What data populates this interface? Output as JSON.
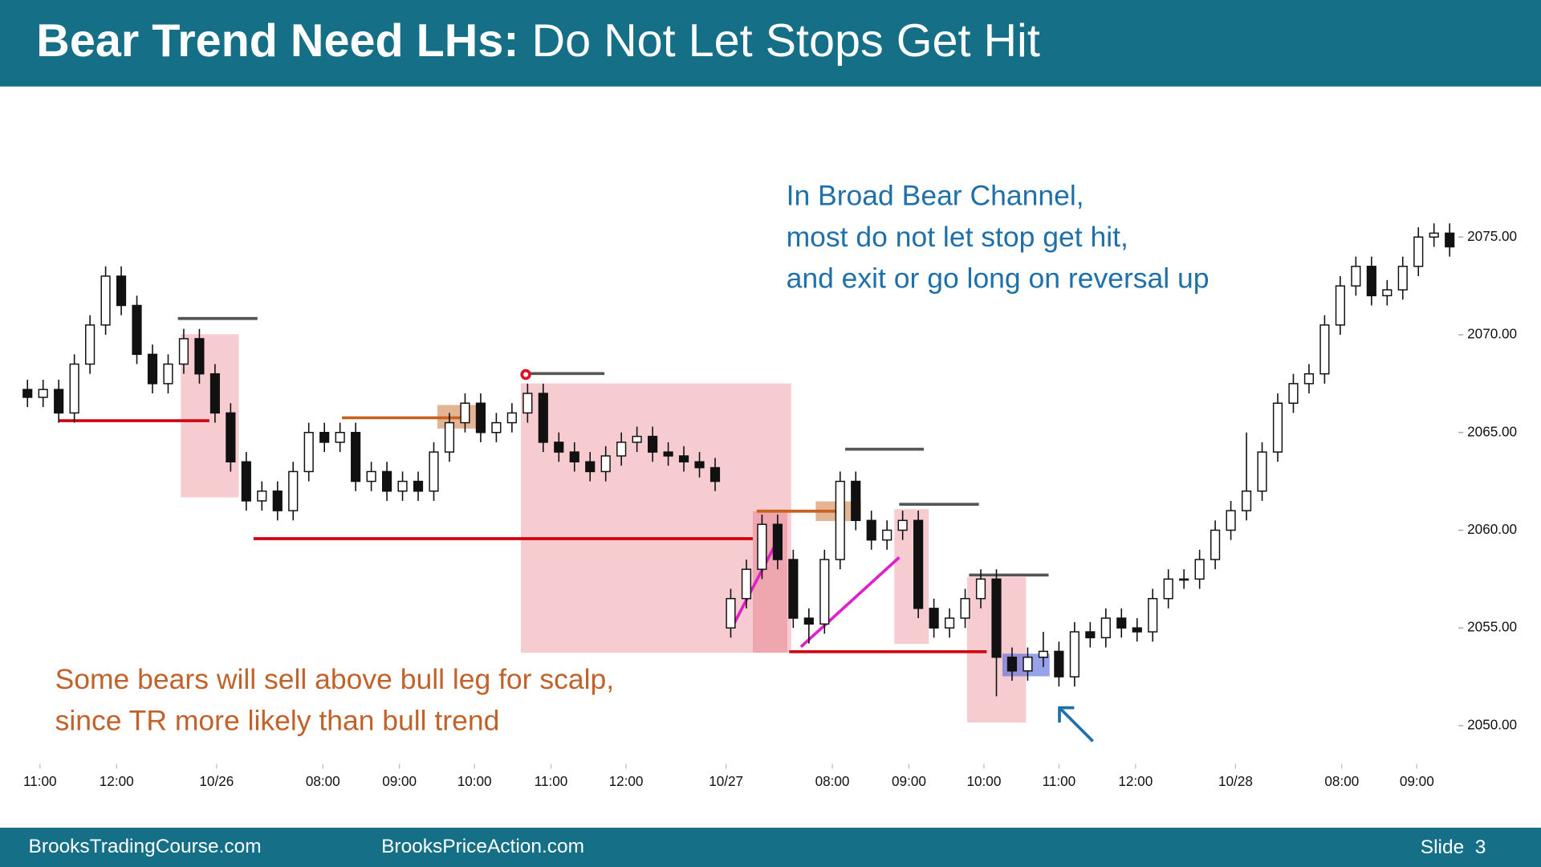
{
  "chart_data": {
    "type": "candlestick",
    "title": [
      "Bear Trend Need LHs:",
      "Do Not Let Stops Get Hit"
    ],
    "annotations": [
      [
        "In Broad Bear Channel,",
        "most do not let stop get hit,",
        "and exit or go long on reversal up"
      ],
      [
        "Some bears will sell above bull leg for scalp,",
        "since TR more likely than bull trend"
      ]
    ],
    "ylim": [
      2048.4,
      2082.1
    ],
    "yticks": [
      {
        "value": 2050,
        "label": "2050.00"
      },
      {
        "value": 2055,
        "label": "2055.00"
      },
      {
        "value": 2060,
        "label": "2060.00"
      },
      {
        "value": 2065,
        "label": "2065.00"
      },
      {
        "value": 2070,
        "label": "2070.00"
      },
      {
        "value": 2075,
        "label": "2075.00"
      }
    ],
    "xlim": [
      0,
      92
    ],
    "xticks": [
      {
        "value": 1.3,
        "label": "11:00"
      },
      {
        "value": 6.2,
        "label": "12:00"
      },
      {
        "value": 12.6,
        "label": "10/26"
      },
      {
        "value": 19.4,
        "label": "08:00"
      },
      {
        "value": 24.3,
        "label": "09:00"
      },
      {
        "value": 29.1,
        "label": "10:00"
      },
      {
        "value": 34.0,
        "label": "11:00"
      },
      {
        "value": 38.8,
        "label": "12:00"
      },
      {
        "value": 45.2,
        "label": "10/27"
      },
      {
        "value": 52.0,
        "label": "08:00"
      },
      {
        "value": 56.9,
        "label": "09:00"
      },
      {
        "value": 61.7,
        "label": "10:00"
      },
      {
        "value": 66.5,
        "label": "11:00"
      },
      {
        "value": 71.4,
        "label": "12:00"
      },
      {
        "value": 77.8,
        "label": "10/28"
      },
      {
        "value": 84.6,
        "label": "08:00"
      },
      {
        "value": 89.4,
        "label": "09:00"
      }
    ],
    "up_color": "#ffffff",
    "down_color": "#111111",
    "ohlc": [
      [
        2067.2,
        2067.7,
        2066.3,
        2066.8
      ],
      [
        2066.8,
        2067.7,
        2066.3,
        2067.2
      ],
      [
        2067.2,
        2067.7,
        2065.5,
        2066.0
      ],
      [
        2066.0,
        2069.0,
        2065.5,
        2068.5
      ],
      [
        2068.5,
        2071.0,
        2068.0,
        2070.5
      ],
      [
        2070.5,
        2073.5,
        2070.0,
        2073.0
      ],
      [
        2073.0,
        2073.5,
        2071.0,
        2071.5
      ],
      [
        2071.5,
        2072.0,
        2068.5,
        2069.0
      ],
      [
        2069.0,
        2069.5,
        2067.0,
        2067.5
      ],
      [
        2067.5,
        2069.0,
        2067.0,
        2068.5
      ],
      [
        2068.5,
        2070.3,
        2068.0,
        2069.8
      ],
      [
        2069.8,
        2070.3,
        2067.5,
        2068.0
      ],
      [
        2068.0,
        2068.5,
        2065.5,
        2066.0
      ],
      [
        2066.0,
        2066.5,
        2063.0,
        2063.5
      ],
      [
        2063.5,
        2064.0,
        2061.0,
        2061.5
      ],
      [
        2061.5,
        2062.5,
        2061.0,
        2062.0
      ],
      [
        2062.0,
        2062.5,
        2060.5,
        2061.0
      ],
      [
        2061.0,
        2063.5,
        2060.5,
        2063.0
      ],
      [
        2063.0,
        2065.5,
        2062.5,
        2065.0
      ],
      [
        2065.0,
        2065.5,
        2064.0,
        2064.5
      ],
      [
        2064.5,
        2065.5,
        2064.0,
        2065.0
      ],
      [
        2065.0,
        2065.5,
        2062.0,
        2062.5
      ],
      [
        2062.5,
        2063.5,
        2062.0,
        2063.0
      ],
      [
        2063.0,
        2063.5,
        2061.5,
        2062.0
      ],
      [
        2062.0,
        2063.0,
        2061.5,
        2062.5
      ],
      [
        2062.5,
        2063.0,
        2061.5,
        2062.0
      ],
      [
        2062.0,
        2064.5,
        2061.5,
        2064.0
      ],
      [
        2064.0,
        2066.0,
        2063.5,
        2065.5
      ],
      [
        2065.5,
        2067.0,
        2065.0,
        2066.5
      ],
      [
        2066.5,
        2067.0,
        2064.5,
        2065.0
      ],
      [
        2065.0,
        2066.0,
        2064.5,
        2065.5
      ],
      [
        2065.5,
        2066.5,
        2065.0,
        2066.0
      ],
      [
        2066.0,
        2067.5,
        2065.5,
        2067.0
      ],
      [
        2067.0,
        2067.5,
        2064.0,
        2064.5
      ],
      [
        2064.5,
        2065.0,
        2063.5,
        2064.0
      ],
      [
        2064.0,
        2064.5,
        2063.0,
        2063.5
      ],
      [
        2063.5,
        2064.0,
        2062.5,
        2063.0
      ],
      [
        2063.0,
        2064.3,
        2062.5,
        2063.8
      ],
      [
        2063.8,
        2065.0,
        2063.3,
        2064.5
      ],
      [
        2064.5,
        2065.3,
        2064.0,
        2064.8
      ],
      [
        2064.8,
        2065.3,
        2063.5,
        2064.0
      ],
      [
        2064.0,
        2064.5,
        2063.3,
        2063.8
      ],
      [
        2063.8,
        2064.3,
        2063.0,
        2063.5
      ],
      [
        2063.5,
        2064.0,
        2062.7,
        2063.2
      ],
      [
        2063.2,
        2063.7,
        2062.0,
        2062.5
      ],
      [
        2055.0,
        2057.0,
        2054.5,
        2056.5
      ],
      [
        2056.5,
        2058.5,
        2056.0,
        2058.0
      ],
      [
        2058.0,
        2060.8,
        2057.5,
        2060.3
      ],
      [
        2060.3,
        2060.8,
        2058.0,
        2058.5
      ],
      [
        2058.5,
        2059.0,
        2055.0,
        2055.5
      ],
      [
        2055.5,
        2056.0,
        2054.2,
        2055.2
      ],
      [
        2055.2,
        2059.0,
        2054.7,
        2058.5
      ],
      [
        2058.5,
        2063.0,
        2058.0,
        2062.5
      ],
      [
        2062.5,
        2063.0,
        2060.0,
        2060.5
      ],
      [
        2060.5,
        2061.0,
        2059.0,
        2059.5
      ],
      [
        2059.5,
        2060.5,
        2059.0,
        2060.0
      ],
      [
        2060.0,
        2061.0,
        2059.5,
        2060.5
      ],
      [
        2060.5,
        2061.0,
        2055.5,
        2056.0
      ],
      [
        2056.0,
        2056.5,
        2054.5,
        2055.0
      ],
      [
        2055.0,
        2056.0,
        2054.5,
        2055.5
      ],
      [
        2055.5,
        2057.0,
        2055.0,
        2056.5
      ],
      [
        2056.5,
        2058.0,
        2056.0,
        2057.5
      ],
      [
        2057.5,
        2058.0,
        2051.5,
        2053.5
      ],
      [
        2053.5,
        2054.0,
        2052.3,
        2052.8
      ],
      [
        2052.8,
        2054.0,
        2052.3,
        2053.5
      ],
      [
        2053.5,
        2054.8,
        2053.0,
        2053.8
      ],
      [
        2053.8,
        2054.3,
        2052.0,
        2052.5
      ],
      [
        2052.5,
        2055.3,
        2052.0,
        2054.8
      ],
      [
        2054.8,
        2055.3,
        2054.0,
        2054.5
      ],
      [
        2054.5,
        2056.0,
        2054.0,
        2055.5
      ],
      [
        2055.5,
        2056.0,
        2054.5,
        2055.0
      ],
      [
        2055.0,
        2055.5,
        2054.3,
        2054.8
      ],
      [
        2054.8,
        2057.0,
        2054.3,
        2056.5
      ],
      [
        2056.5,
        2058.0,
        2056.0,
        2057.5
      ],
      [
        2057.5,
        2058.0,
        2057.0,
        2057.5
      ],
      [
        2057.5,
        2059.0,
        2057.0,
        2058.5
      ],
      [
        2058.5,
        2060.5,
        2058.0,
        2060.0
      ],
      [
        2060.0,
        2061.5,
        2059.5,
        2061.0
      ],
      [
        2061.0,
        2065.0,
        2060.5,
        2062.0
      ],
      [
        2062.0,
        2064.5,
        2061.5,
        2064.0
      ],
      [
        2064.0,
        2067.0,
        2063.5,
        2066.5
      ],
      [
        2066.5,
        2068.0,
        2066.0,
        2067.5
      ],
      [
        2067.5,
        2068.5,
        2067.0,
        2068.0
      ],
      [
        2068.0,
        2071.0,
        2067.5,
        2070.5
      ],
      [
        2070.5,
        2073.0,
        2070.0,
        2072.5
      ],
      [
        2072.5,
        2074.0,
        2072.0,
        2073.5
      ],
      [
        2073.5,
        2074.0,
        2071.5,
        2072.0
      ],
      [
        2072.0,
        2072.8,
        2071.5,
        2072.3
      ],
      [
        2072.3,
        2074.0,
        2071.8,
        2073.5
      ],
      [
        2073.5,
        2075.5,
        2073.0,
        2075.0
      ],
      [
        2075.0,
        2075.7,
        2074.5,
        2075.2
      ],
      [
        2075.2,
        2075.7,
        2074.0,
        2074.5
      ]
    ]
  },
  "footer": {
    "left": "BrooksTradingCourse.com",
    "middle": "BrooksPriceAction.com",
    "slide": "Slide  3"
  }
}
